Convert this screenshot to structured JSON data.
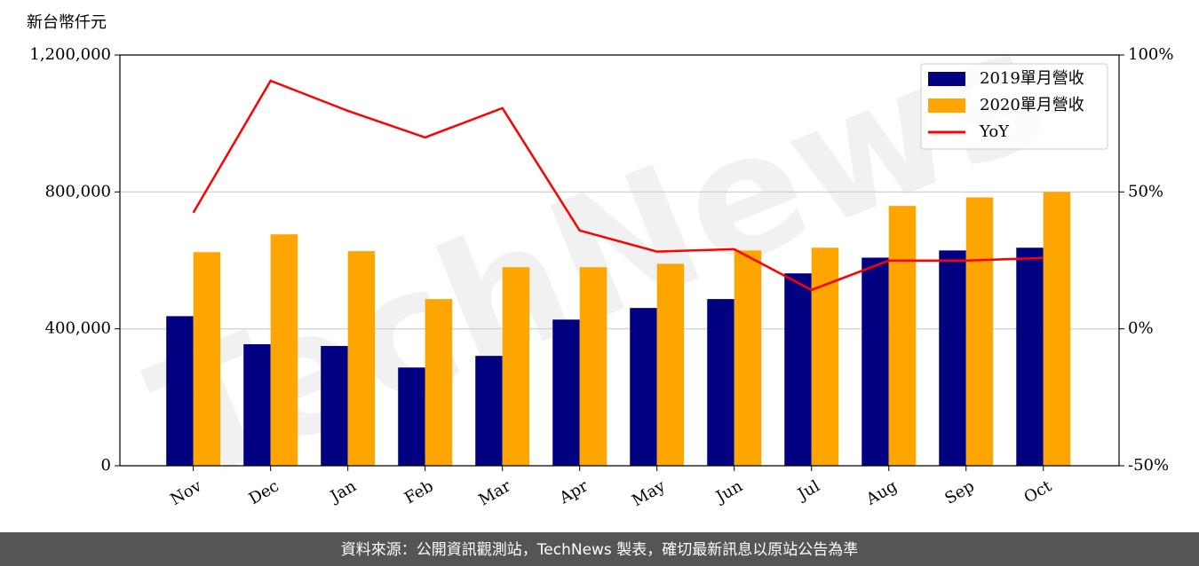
{
  "chart_data": {
    "type": "bar",
    "y_label": "新台幣仟元",
    "watermark": "TechNews",
    "footer": "資料來源：公開資訊觀測站，TechNews 製表，確切最新訊息以原站公告為準",
    "categories": [
      "Nov",
      "Dec",
      "Jan",
      "Feb",
      "Mar",
      "Apr",
      "May",
      "Jun",
      "Jul",
      "Aug",
      "Sep",
      "Oct"
    ],
    "series": [
      {
        "name": "2019單月營收",
        "color": "#000080",
        "values": [
          437000,
          355000,
          350000,
          287000,
          321000,
          427000,
          461000,
          487000,
          562000,
          608000,
          629000,
          637000
        ]
      },
      {
        "name": "2020單月營收",
        "color": "#ffa500",
        "values": [
          624000,
          676000,
          627000,
          487000,
          580000,
          580000,
          590000,
          629000,
          637000,
          759000,
          784000,
          800000
        ]
      },
      {
        "name": "YoY",
        "color": "#ff0000",
        "type": "line",
        "axis": "y2",
        "values": [
          42.4,
          90.6,
          79.6,
          69.9,
          80.6,
          35.9,
          28.2,
          29.1,
          14.2,
          24.9,
          24.9,
          25.9
        ]
      }
    ],
    "ylim": [
      0,
      1200000
    ],
    "yticks": [
      0,
      {
        "value": 400000,
        "label": "400,000"
      },
      {
        "value": 800000,
        "label": "800,000"
      },
      {
        "value": 1200000,
        "label": "1,200,000"
      }
    ],
    "y2lim": [
      -50,
      100
    ],
    "y2ticks": [
      {
        "value": -50,
        "label": "-50%"
      },
      {
        "value": 0,
        "label": "0%"
      },
      {
        "value": 50,
        "label": "50%"
      },
      {
        "value": 100,
        "label": "100%"
      }
    ],
    "grid": true,
    "legend": "upper right"
  }
}
